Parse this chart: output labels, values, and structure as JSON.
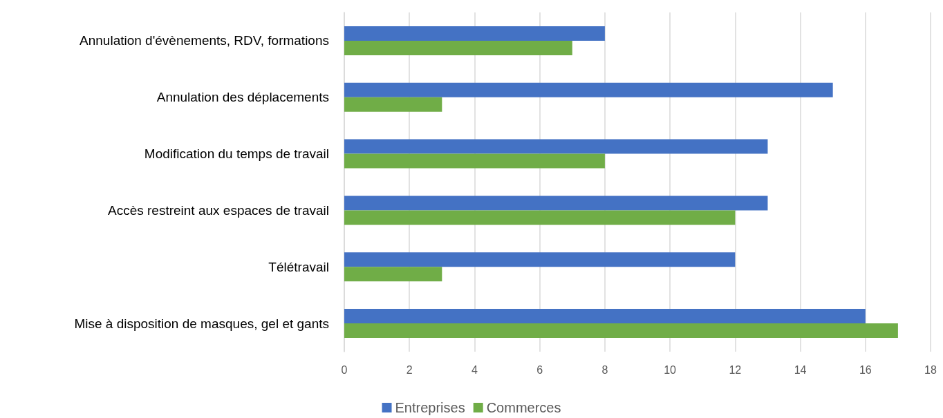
{
  "chart_data": {
    "type": "bar",
    "orientation": "horizontal",
    "categories": [
      "Annulation d'évènements, RDV, formations",
      "Annulation des déplacements",
      "Modification du temps de travail",
      "Accès restreint aux espaces de travail",
      "Télétravail",
      "Mise à disposition de masques, gel et gants"
    ],
    "series": [
      {
        "name": "Entreprises",
        "color": "#4472c4",
        "values": [
          8,
          15,
          13,
          13,
          12,
          16
        ]
      },
      {
        "name": "Commerces",
        "color": "#70ad47",
        "values": [
          7,
          3,
          8,
          12,
          3,
          17
        ]
      }
    ],
    "xlim": [
      0,
      18
    ],
    "xticks": [
      0,
      2,
      4,
      6,
      8,
      10,
      12,
      14,
      16,
      18
    ],
    "grid": "x",
    "legend": "bottom"
  }
}
